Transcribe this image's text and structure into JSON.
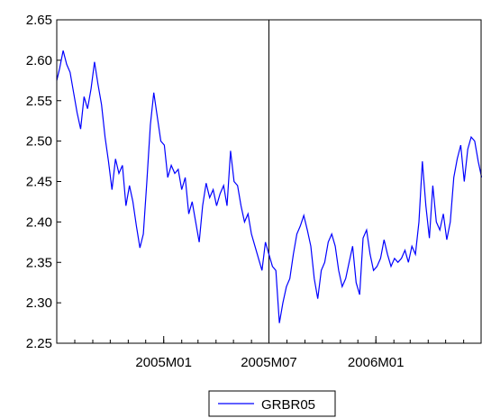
{
  "chart_data": {
    "type": "line",
    "title": "",
    "xlabel": "",
    "ylabel": "",
    "ylim": [
      2.25,
      2.65
    ],
    "yticks": [
      "2.25",
      "2.30",
      "2.35",
      "2.40",
      "2.45",
      "2.50",
      "2.55",
      "2.60",
      "2.65"
    ],
    "xlim": [
      "2004M07",
      "2006M07"
    ],
    "xticks": [
      {
        "label": "2005M01",
        "value": "2005M01"
      },
      {
        "label": "2005M07",
        "value": "2005M07"
      },
      {
        "label": "2006M01",
        "value": "2006M01"
      }
    ],
    "vertical_marker": "2005M07",
    "grid": false,
    "legend_position": "bottom-center",
    "series": [
      {
        "name": "GRBR05",
        "color": "#0000ff",
        "x": [
          "2004-07-01",
          "2004-07-06",
          "2004-07-12",
          "2004-07-18",
          "2004-07-24",
          "2004-07-30",
          "2004-08-05",
          "2004-08-11",
          "2004-08-17",
          "2004-08-23",
          "2004-08-29",
          "2004-09-04",
          "2004-09-10",
          "2004-09-16",
          "2004-09-22",
          "2004-09-28",
          "2004-10-04",
          "2004-10-10",
          "2004-10-16",
          "2004-10-22",
          "2004-10-28",
          "2004-11-03",
          "2004-11-09",
          "2004-11-15",
          "2004-11-21",
          "2004-11-27",
          "2004-12-03",
          "2004-12-09",
          "2004-12-15",
          "2004-12-21",
          "2004-12-27",
          "2005-01-02",
          "2005-01-08",
          "2005-01-14",
          "2005-01-20",
          "2005-01-26",
          "2005-02-01",
          "2005-02-07",
          "2005-02-13",
          "2005-02-19",
          "2005-02-25",
          "2005-03-03",
          "2005-03-09",
          "2005-03-15",
          "2005-03-21",
          "2005-03-27",
          "2005-04-02",
          "2005-04-08",
          "2005-04-14",
          "2005-04-20",
          "2005-04-26",
          "2005-05-02",
          "2005-05-08",
          "2005-05-14",
          "2005-05-20",
          "2005-05-26",
          "2005-06-01",
          "2005-06-07",
          "2005-06-13",
          "2005-06-19",
          "2005-06-25",
          "2005-07-01",
          "2005-07-07",
          "2005-07-13",
          "2005-07-19",
          "2005-07-25",
          "2005-07-31",
          "2005-08-06",
          "2005-08-12",
          "2005-08-18",
          "2005-08-24",
          "2005-08-30",
          "2005-09-05",
          "2005-09-11",
          "2005-09-17",
          "2005-09-23",
          "2005-09-29",
          "2005-10-05",
          "2005-10-11",
          "2005-10-17",
          "2005-10-23",
          "2005-10-29",
          "2005-11-04",
          "2005-11-10",
          "2005-11-16",
          "2005-11-22",
          "2005-11-28",
          "2005-12-04",
          "2005-12-10",
          "2005-12-16",
          "2005-12-22",
          "2005-12-28",
          "2006-01-03",
          "2006-01-09",
          "2006-01-15",
          "2006-01-21",
          "2006-01-27",
          "2006-02-02",
          "2006-02-08",
          "2006-02-14",
          "2006-02-20",
          "2006-02-26",
          "2006-03-04",
          "2006-03-10",
          "2006-03-16",
          "2006-03-22",
          "2006-03-28",
          "2006-04-03",
          "2006-04-09",
          "2006-04-15",
          "2006-04-21",
          "2006-04-27",
          "2006-05-03",
          "2006-05-09",
          "2006-05-15",
          "2006-05-21",
          "2006-05-27",
          "2006-06-02",
          "2006-06-08",
          "2006-06-14",
          "2006-06-20",
          "2006-06-26",
          "2006-07-02"
        ],
        "y": [
          2.575,
          2.59,
          2.612,
          2.595,
          2.585,
          2.56,
          2.535,
          2.515,
          2.555,
          2.54,
          2.565,
          2.598,
          2.57,
          2.545,
          2.505,
          2.475,
          2.44,
          2.478,
          2.46,
          2.47,
          2.42,
          2.445,
          2.425,
          2.395,
          2.368,
          2.385,
          2.45,
          2.52,
          2.56,
          2.53,
          2.5,
          2.495,
          2.455,
          2.47,
          2.46,
          2.465,
          2.44,
          2.455,
          2.41,
          2.425,
          2.4,
          2.375,
          2.42,
          2.448,
          2.43,
          2.44,
          2.42,
          2.435,
          2.445,
          2.42,
          2.488,
          2.45,
          2.445,
          2.42,
          2.4,
          2.41,
          2.385,
          2.37,
          2.355,
          2.34,
          2.375,
          2.36,
          2.345,
          2.34,
          2.275,
          2.3,
          2.32,
          2.33,
          2.36,
          2.385,
          2.395,
          2.408,
          2.39,
          2.37,
          2.33,
          2.305,
          2.34,
          2.35,
          2.375,
          2.385,
          2.37,
          2.34,
          2.32,
          2.33,
          2.35,
          2.37,
          2.325,
          2.31,
          2.38,
          2.39,
          2.36,
          2.34,
          2.345,
          2.355,
          2.378,
          2.36,
          2.345,
          2.355,
          2.35,
          2.355,
          2.365,
          2.35,
          2.37,
          2.36,
          2.4,
          2.475,
          2.42,
          2.38,
          2.445,
          2.4,
          2.39,
          2.41,
          2.378,
          2.4,
          2.455,
          2.478,
          2.495,
          2.45,
          2.49,
          2.505,
          2.5,
          2.475,
          2.455
        ]
      }
    ]
  }
}
